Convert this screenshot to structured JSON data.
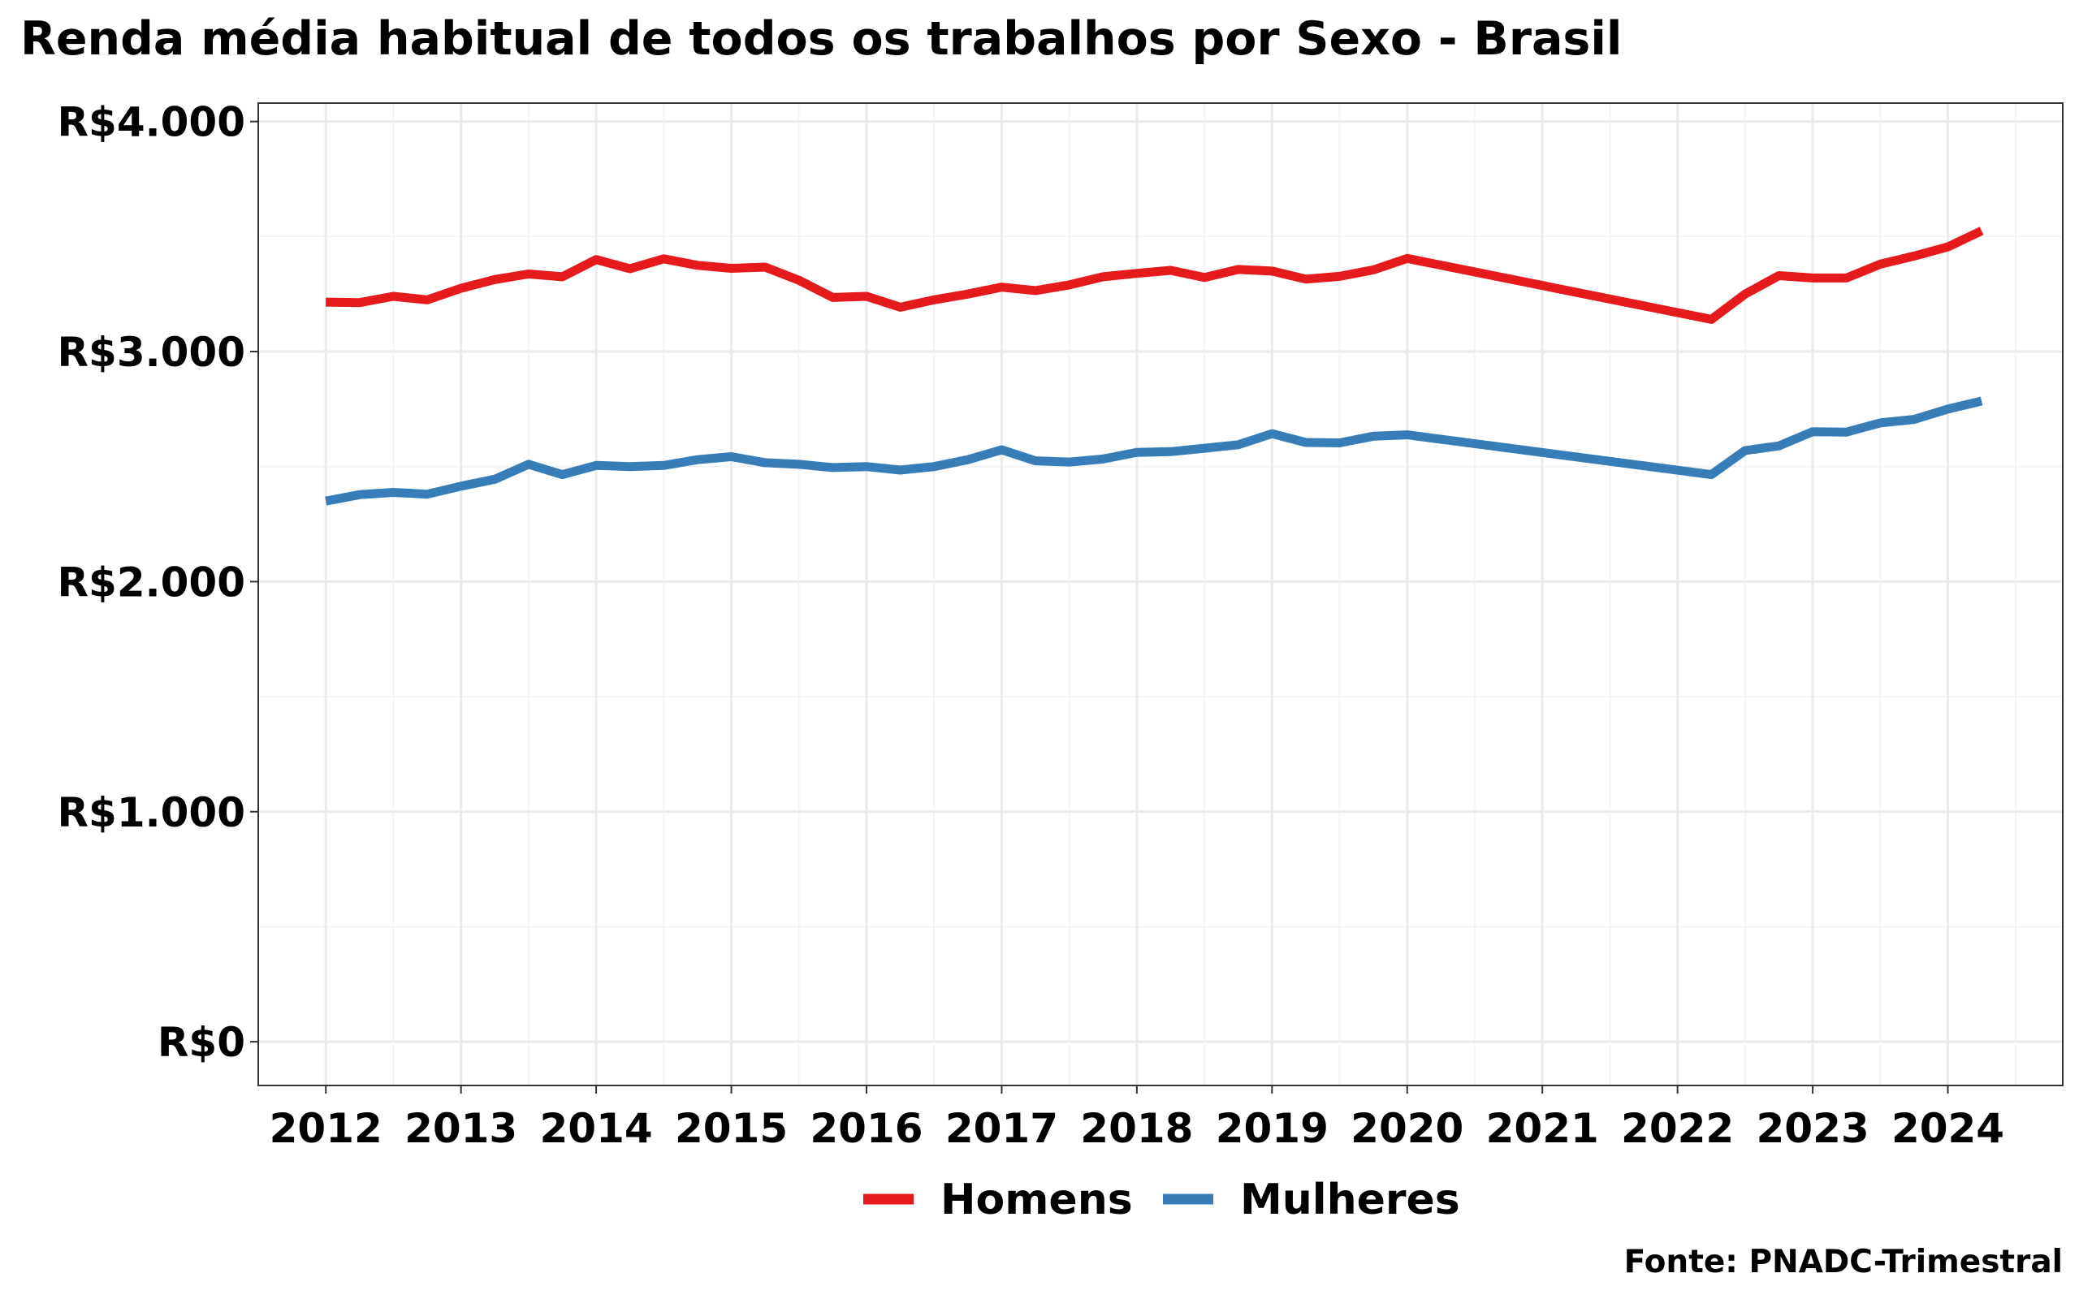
{
  "chart_data": {
    "type": "line",
    "title": "Renda média habitual de todos os trabalhos por Sexo - Brasil",
    "caption": "Fonte: PNADC-Trimestral",
    "xlabel": "",
    "ylabel": "",
    "xlim": [
      2011.5,
      2024.85
    ],
    "ylim": [
      -190,
      4080
    ],
    "x_ticks": [
      "2012",
      "2013",
      "2014",
      "2015",
      "2016",
      "2017",
      "2018",
      "2019",
      "2020",
      "2021",
      "2022",
      "2023",
      "2024"
    ],
    "y_ticks": [
      {
        "value": 0,
        "label": "R$0"
      },
      {
        "value": 1000,
        "label": "R$1.000"
      },
      {
        "value": 2000,
        "label": "R$2.000"
      },
      {
        "value": 3000,
        "label": "R$3.000"
      },
      {
        "value": 4000,
        "label": "R$4.000"
      }
    ],
    "grid": true,
    "legend_position": "bottom",
    "series": [
      {
        "name": "Homens",
        "color": "#e41a1c",
        "points": [
          [
            2012.0,
            3215
          ],
          [
            2012.25,
            3213
          ],
          [
            2012.5,
            3240
          ],
          [
            2012.75,
            3225
          ],
          [
            2013.0,
            3275
          ],
          [
            2013.25,
            3313
          ],
          [
            2013.5,
            3337
          ],
          [
            2013.75,
            3325
          ],
          [
            2014.0,
            3400
          ],
          [
            2014.25,
            3360
          ],
          [
            2014.5,
            3403
          ],
          [
            2014.75,
            3375
          ],
          [
            2015.0,
            3362
          ],
          [
            2015.25,
            3367
          ],
          [
            2015.5,
            3310
          ],
          [
            2015.75,
            3235
          ],
          [
            2016.0,
            3240
          ],
          [
            2016.25,
            3193
          ],
          [
            2016.5,
            3225
          ],
          [
            2016.75,
            3250
          ],
          [
            2017.0,
            3280
          ],
          [
            2017.25,
            3265
          ],
          [
            2017.5,
            3290
          ],
          [
            2017.75,
            3325
          ],
          [
            2018.0,
            3340
          ],
          [
            2018.25,
            3353
          ],
          [
            2018.5,
            3322
          ],
          [
            2018.75,
            3357
          ],
          [
            2019.0,
            3350
          ],
          [
            2019.25,
            3315
          ],
          [
            2019.5,
            3327
          ],
          [
            2019.75,
            3355
          ],
          [
            2020.0,
            3405
          ],
          [
            2022.25,
            3140
          ],
          [
            2022.5,
            3250
          ],
          [
            2022.75,
            3330
          ],
          [
            2023.0,
            3320
          ],
          [
            2023.25,
            3320
          ],
          [
            2023.5,
            3380
          ],
          [
            2023.75,
            3415
          ],
          [
            2024.0,
            3455
          ],
          [
            2024.25,
            3525
          ]
        ]
      },
      {
        "name": "Mulheres",
        "color": "#377eb8",
        "points": [
          [
            2012.0,
            2350
          ],
          [
            2012.25,
            2378
          ],
          [
            2012.5,
            2388
          ],
          [
            2012.75,
            2380
          ],
          [
            2013.0,
            2415
          ],
          [
            2013.25,
            2445
          ],
          [
            2013.5,
            2510
          ],
          [
            2013.75,
            2465
          ],
          [
            2014.0,
            2505
          ],
          [
            2014.25,
            2500
          ],
          [
            2014.5,
            2505
          ],
          [
            2014.75,
            2530
          ],
          [
            2015.0,
            2543
          ],
          [
            2015.25,
            2517
          ],
          [
            2015.5,
            2510
          ],
          [
            2015.75,
            2496
          ],
          [
            2016.0,
            2500
          ],
          [
            2016.25,
            2485
          ],
          [
            2016.5,
            2500
          ],
          [
            2016.75,
            2530
          ],
          [
            2017.0,
            2573
          ],
          [
            2017.25,
            2525
          ],
          [
            2017.5,
            2520
          ],
          [
            2017.75,
            2533
          ],
          [
            2018.0,
            2562
          ],
          [
            2018.25,
            2565
          ],
          [
            2018.5,
            2580
          ],
          [
            2018.75,
            2595
          ],
          [
            2019.0,
            2643
          ],
          [
            2019.25,
            2605
          ],
          [
            2019.5,
            2603
          ],
          [
            2019.75,
            2632
          ],
          [
            2020.0,
            2638
          ],
          [
            2022.25,
            2465
          ],
          [
            2022.5,
            2570
          ],
          [
            2022.75,
            2590
          ],
          [
            2023.0,
            2652
          ],
          [
            2023.25,
            2650
          ],
          [
            2023.5,
            2690
          ],
          [
            2023.75,
            2705
          ],
          [
            2024.0,
            2750
          ],
          [
            2024.25,
            2785
          ]
        ]
      }
    ]
  }
}
